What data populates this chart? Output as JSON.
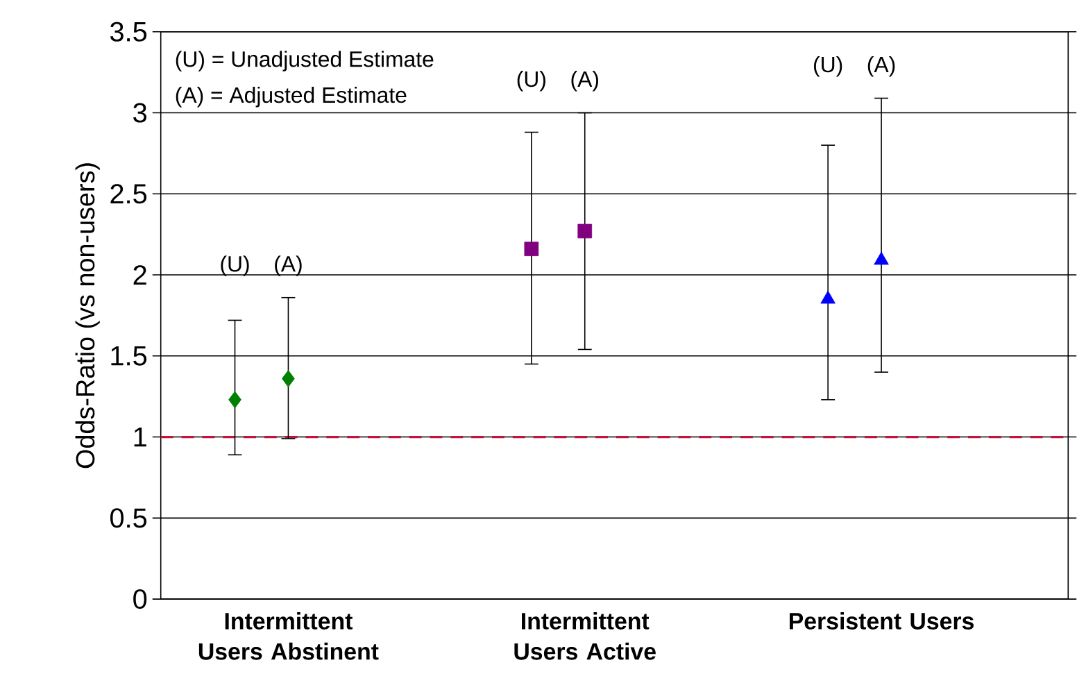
{
  "chart_data": {
    "type": "scatter",
    "ylabel": "Odds-Ratio (vs non-users)",
    "categories": [
      "Intermittent Users Abstinent",
      "Intermittent Users Active",
      "Persistent Users"
    ],
    "ylim": [
      0,
      3.5
    ],
    "yticks": [
      0,
      0.5,
      1,
      1.5,
      2,
      2.5,
      3,
      3.5
    ],
    "grid": "y",
    "series": [
      {
        "color": "#008000",
        "marker": "diamond",
        "x": [
          "Intermittent Users Abstinent",
          "Intermittent Users Abstinent"
        ],
        "values": [
          1.23,
          1.36
        ],
        "errors": [
          [
            0.89,
            1.72
          ],
          [
            0.99,
            1.86
          ]
        ]
      },
      {
        "color": "#800080",
        "marker": "square",
        "x": [
          "Intermittent Users Active",
          "Intermittent Users Active"
        ],
        "values": [
          2.16,
          2.27
        ],
        "errors": [
          [
            1.45,
            2.88
          ],
          [
            1.54,
            3.0
          ]
        ]
      },
      {
        "color": "#0000ff",
        "marker": "triangle",
        "x": [
          "Persistent Users",
          "Persistent Users"
        ],
        "values": [
          1.85,
          2.09
        ],
        "errors": [
          [
            1.23,
            2.8
          ],
          [
            1.4,
            3.09
          ]
        ]
      }
    ],
    "ref_lines": [
      {
        "axis": "y",
        "value": 1,
        "color": "#c0143c",
        "line_style": "dashed"
      }
    ],
    "annotations": [
      "(U) = Unadjusted Estimate",
      "(A) = Adjusted Estimate",
      "(U)",
      "(A)",
      "(U)",
      "(A)",
      "(U)",
      "(A)"
    ]
  }
}
